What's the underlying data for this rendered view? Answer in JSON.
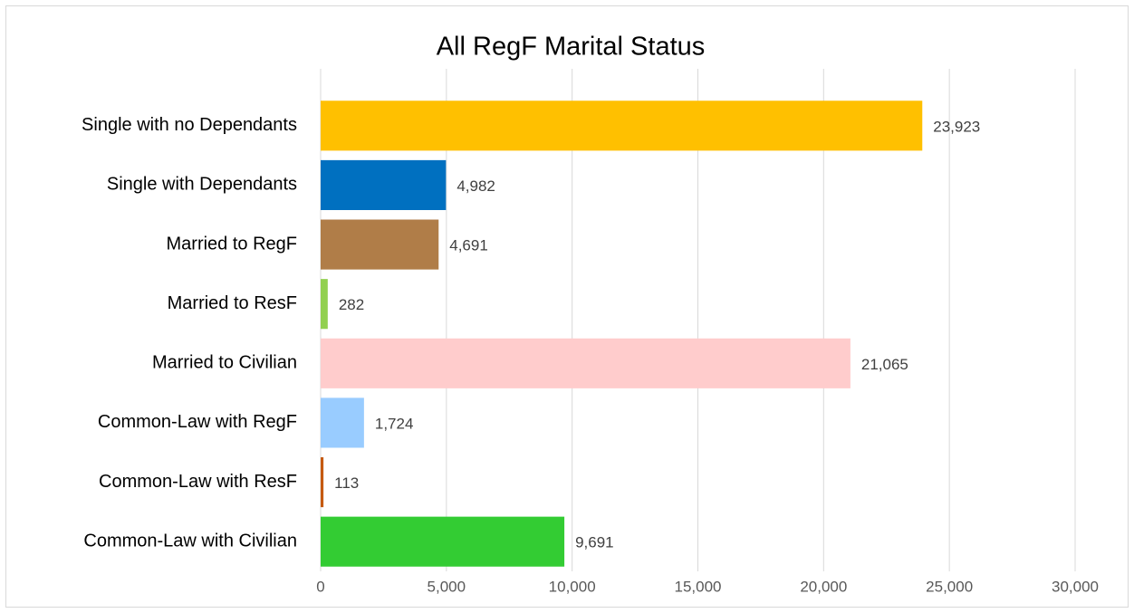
{
  "chart_data": {
    "type": "bar",
    "orientation": "horizontal",
    "title": "All RegF Marital Status",
    "categories": [
      "Single with no Dependants",
      "Single with Dependants",
      "Married to RegF",
      "Married to ResF",
      "Married to Civilian",
      "Common-Law with RegF",
      "Common-Law with ResF",
      "Common-Law with Civilian"
    ],
    "values": [
      23923,
      4982,
      4691,
      282,
      21065,
      1724,
      113,
      9691
    ],
    "value_labels": [
      "23,923",
      "4,982",
      "4,691",
      "282",
      "21,065",
      "1,724",
      "113",
      "9,691"
    ],
    "colors": [
      "#FFC000",
      "#0070C0",
      "#B07D48",
      "#92D050",
      "#FFCCCC",
      "#99CCFF",
      "#C55A11",
      "#33CC33"
    ],
    "xlim": [
      0,
      30000
    ],
    "xticks": [
      0,
      {
        "value": 5000,
        "label": "5,000"
      },
      {
        "value": 10000,
        "label": "10,000"
      },
      {
        "value": 15000,
        "label": "15,000"
      },
      {
        "value": 20000,
        "label": "20,000"
      },
      {
        "value": 25000,
        "label": "25,000"
      },
      {
        "value": 30000,
        "label": "30,000"
      }
    ],
    "grid": true
  }
}
